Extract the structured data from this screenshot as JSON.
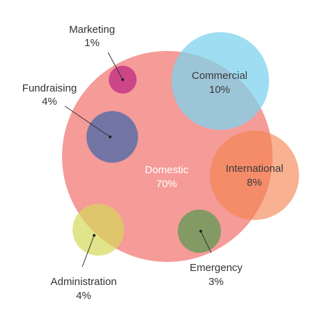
{
  "chart_data": {
    "type": "bubble",
    "items": [
      {
        "name": "Domestic",
        "percent": "70%",
        "value": 70,
        "color": "#f4938f"
      },
      {
        "name": "Commercial",
        "percent": "10%",
        "value": 10,
        "color": "#7fd3ee"
      },
      {
        "name": "International",
        "percent": "8%",
        "value": 8,
        "color": "#f6a66f"
      },
      {
        "name": "Fundraising",
        "percent": "4%",
        "value": 4,
        "color": "#5d6fa3"
      },
      {
        "name": "Administration",
        "percent": "4%",
        "value": 4,
        "color": "#dede8a"
      },
      {
        "name": "Emergency",
        "percent": "3%",
        "value": 3,
        "color": "#7fa068"
      },
      {
        "name": "Marketing",
        "percent": "1%",
        "value": 1,
        "color": "#cc4f8a"
      }
    ]
  }
}
